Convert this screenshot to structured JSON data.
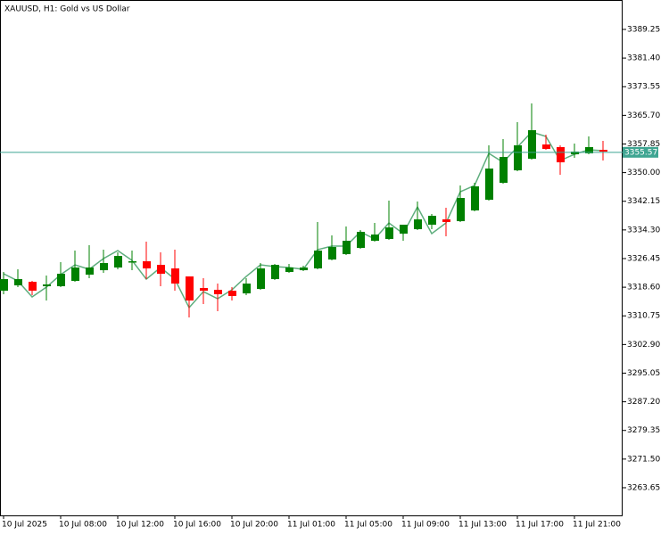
{
  "chart_data": {
    "type": "candlestick",
    "title": "XAUUSD, H1:  Gold vs US Dollar",
    "categories": [
      "10 Jul 2025",
      null,
      null,
      null,
      "10 Jul 08:00",
      null,
      null,
      null,
      "10 Jul 12:00",
      null,
      null,
      null,
      "10 Jul 16:00",
      null,
      null,
      null,
      "10 Jul 20:00",
      null,
      null,
      null,
      "11 Jul 01:00",
      null,
      null,
      null,
      "11 Jul 05:00",
      null,
      null,
      null,
      "11 Jul 09:00",
      null,
      null,
      null,
      "11 Jul 13:00",
      null,
      null,
      null,
      "11 Jul 17:00",
      null,
      null,
      null,
      "11 Jul 21:00",
      null,
      null
    ],
    "open": [
      3317.64,
      3319.11,
      3320.09,
      3318.87,
      3318.87,
      3320.33,
      3322.04,
      3323.26,
      3324.0,
      3325.46,
      3325.71,
      3324.73,
      3323.75,
      3321.55,
      3318.38,
      3317.89,
      3317.64,
      3316.91,
      3318.13,
      3320.82,
      3322.78,
      3323.26,
      3323.75,
      3326.19,
      3327.66,
      3329.37,
      3331.33,
      3331.82,
      3333.28,
      3334.5,
      3335.73,
      3337.19,
      3336.7,
      3339.64,
      3342.57,
      3347.21,
      3350.63,
      3353.81,
      3357.72,
      3356.99,
      3355.03,
      3355.28,
      3356.25
    ],
    "high": [
      3322.78,
      3323.51,
      3320.33,
      3321.8,
      3325.46,
      3328.64,
      3330.11,
      3328.89,
      3328.15,
      3328.64,
      3331.08,
      3328.15,
      3328.89,
      3321.55,
      3321.06,
      3319.6,
      3318.62,
      3321.06,
      3325.22,
      3324.97,
      3324.97,
      3324.49,
      3336.46,
      3332.79,
      3335.24,
      3334.26,
      3336.22,
      3342.33,
      3335.73,
      3342.08,
      3338.66,
      3340.37,
      3346.48,
      3347.21,
      3357.48,
      3359.19,
      3363.83,
      3368.96,
      3360.41,
      3357.48,
      3357.97,
      3359.92,
      3358.7
    ],
    "low": [
      3316.67,
      3318.62,
      3316.42,
      3314.96,
      3318.62,
      3320.09,
      3321.06,
      3322.53,
      3323.51,
      3323.26,
      3320.82,
      3318.87,
      3317.64,
      3310.31,
      3313.98,
      3312.02,
      3314.96,
      3316.42,
      3317.89,
      3320.58,
      3322.53,
      3323.02,
      3323.51,
      3325.95,
      3327.42,
      3329.13,
      3331.08,
      3331.57,
      3331.33,
      3334.26,
      3334.5,
      3332.55,
      3336.46,
      3339.39,
      3342.33,
      3346.97,
      3350.39,
      3353.57,
      3356.25,
      3349.41,
      3354.05,
      3355.03,
      3353.32
    ],
    "close": [
      3320.82,
      3320.82,
      3317.64,
      3319.36,
      3322.29,
      3324.0,
      3324.0,
      3325.22,
      3327.17,
      3325.71,
      3323.75,
      3322.29,
      3319.6,
      3314.96,
      3317.64,
      3316.67,
      3316.18,
      3319.6,
      3323.75,
      3324.73,
      3324.0,
      3324.0,
      3328.64,
      3329.62,
      3331.33,
      3333.77,
      3333.04,
      3334.99,
      3335.73,
      3337.19,
      3338.17,
      3336.46,
      3343.06,
      3346.24,
      3351.12,
      3354.3,
      3357.48,
      3361.63,
      3356.5,
      3352.83,
      3355.77,
      3356.99,
      3355.77
    ],
    "up_color": "#008000",
    "down_color": "#ff0000",
    "line": {
      "color": "#5fae7e",
      "values": [
        3322.29,
        3320.33,
        3315.93,
        3318.62,
        3322.04,
        3324.73,
        3323.51,
        3326.44,
        3328.64,
        3325.95,
        3320.82,
        3324.0,
        3320.82,
        3313.0,
        3317.4,
        3315.44,
        3317.89,
        3321.55,
        3324.73,
        3324.24,
        3324.0,
        3323.51,
        3328.89,
        3329.86,
        3329.86,
        3333.77,
        3331.82,
        3336.22,
        3333.28,
        3340.61,
        3333.28,
        3336.22,
        3344.77,
        3346.48,
        3355.28,
        3352.83,
        3356.99,
        3361.14,
        3359.92,
        3353.32,
        3355.03,
        3356.25,
        3356.01
      ]
    },
    "current_price": 3355.57,
    "current_price_color": "#3fa592",
    "ylim": [
      3256.07,
      3397.31
    ],
    "yticks": [
      3389.25,
      {
        "value": 3381.4,
        "label": "3381.40"
      },
      3373.55,
      {
        "value": 3365.7,
        "label": "3365.70"
      },
      3357.85,
      {
        "value": 3350.0,
        "label": "3350.00"
      },
      3342.15,
      {
        "value": 3334.3,
        "label": "3334.30"
      },
      3326.45,
      {
        "value": 3318.6,
        "label": "3318.60"
      },
      3310.75,
      {
        "value": 3302.9,
        "label": "3302.90"
      },
      3295.05,
      {
        "value": 3287.2,
        "label": "3287.20"
      },
      3279.35,
      {
        "value": 3271.5,
        "label": "3271.50"
      },
      3263.65
    ]
  }
}
